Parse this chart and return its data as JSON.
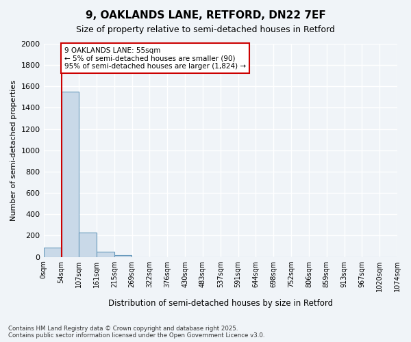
{
  "title": "9, OAKLANDS LANE, RETFORD, DN22 7EF",
  "subtitle": "Size of property relative to semi-detached houses in Retford",
  "xlabel": "Distribution of semi-detached houses by size in Retford",
  "ylabel": "Number of semi-detached properties",
  "bin_labels": [
    "0sqm",
    "54sqm",
    "107sqm",
    "161sqm",
    "215sqm",
    "269sqm",
    "322sqm",
    "376sqm",
    "430sqm",
    "483sqm",
    "537sqm",
    "591sqm",
    "644sqm",
    "698sqm",
    "752sqm",
    "806sqm",
    "859sqm",
    "913sqm",
    "967sqm",
    "1020sqm",
    "1074sqm"
  ],
  "bar_heights": [
    90,
    1550,
    230,
    50,
    20,
    0,
    0,
    0,
    0,
    0,
    0,
    0,
    0,
    0,
    0,
    0,
    0,
    0,
    0,
    0
  ],
  "bar_color": "#c9d9e8",
  "bar_edge_color": "#6699bb",
  "ylim": [
    0,
    2000
  ],
  "yticks": [
    0,
    200,
    400,
    600,
    800,
    1000,
    1200,
    1400,
    1600,
    1800,
    2000
  ],
  "property_size": 55,
  "property_line_color": "#cc0000",
  "annotation_text": "9 OAKLANDS LANE: 55sqm\n← 5% of semi-detached houses are smaller (90)\n95% of semi-detached houses are larger (1,824) →",
  "annotation_box_color": "#cc0000",
  "footnote": "Contains HM Land Registry data © Crown copyright and database right 2025.\nContains public sector information licensed under the Open Government Licence v3.0.",
  "background_color": "#f0f4f8",
  "plot_bg_color": "#f0f4f8",
  "grid_color": "#ffffff",
  "bin_width": 53.7
}
